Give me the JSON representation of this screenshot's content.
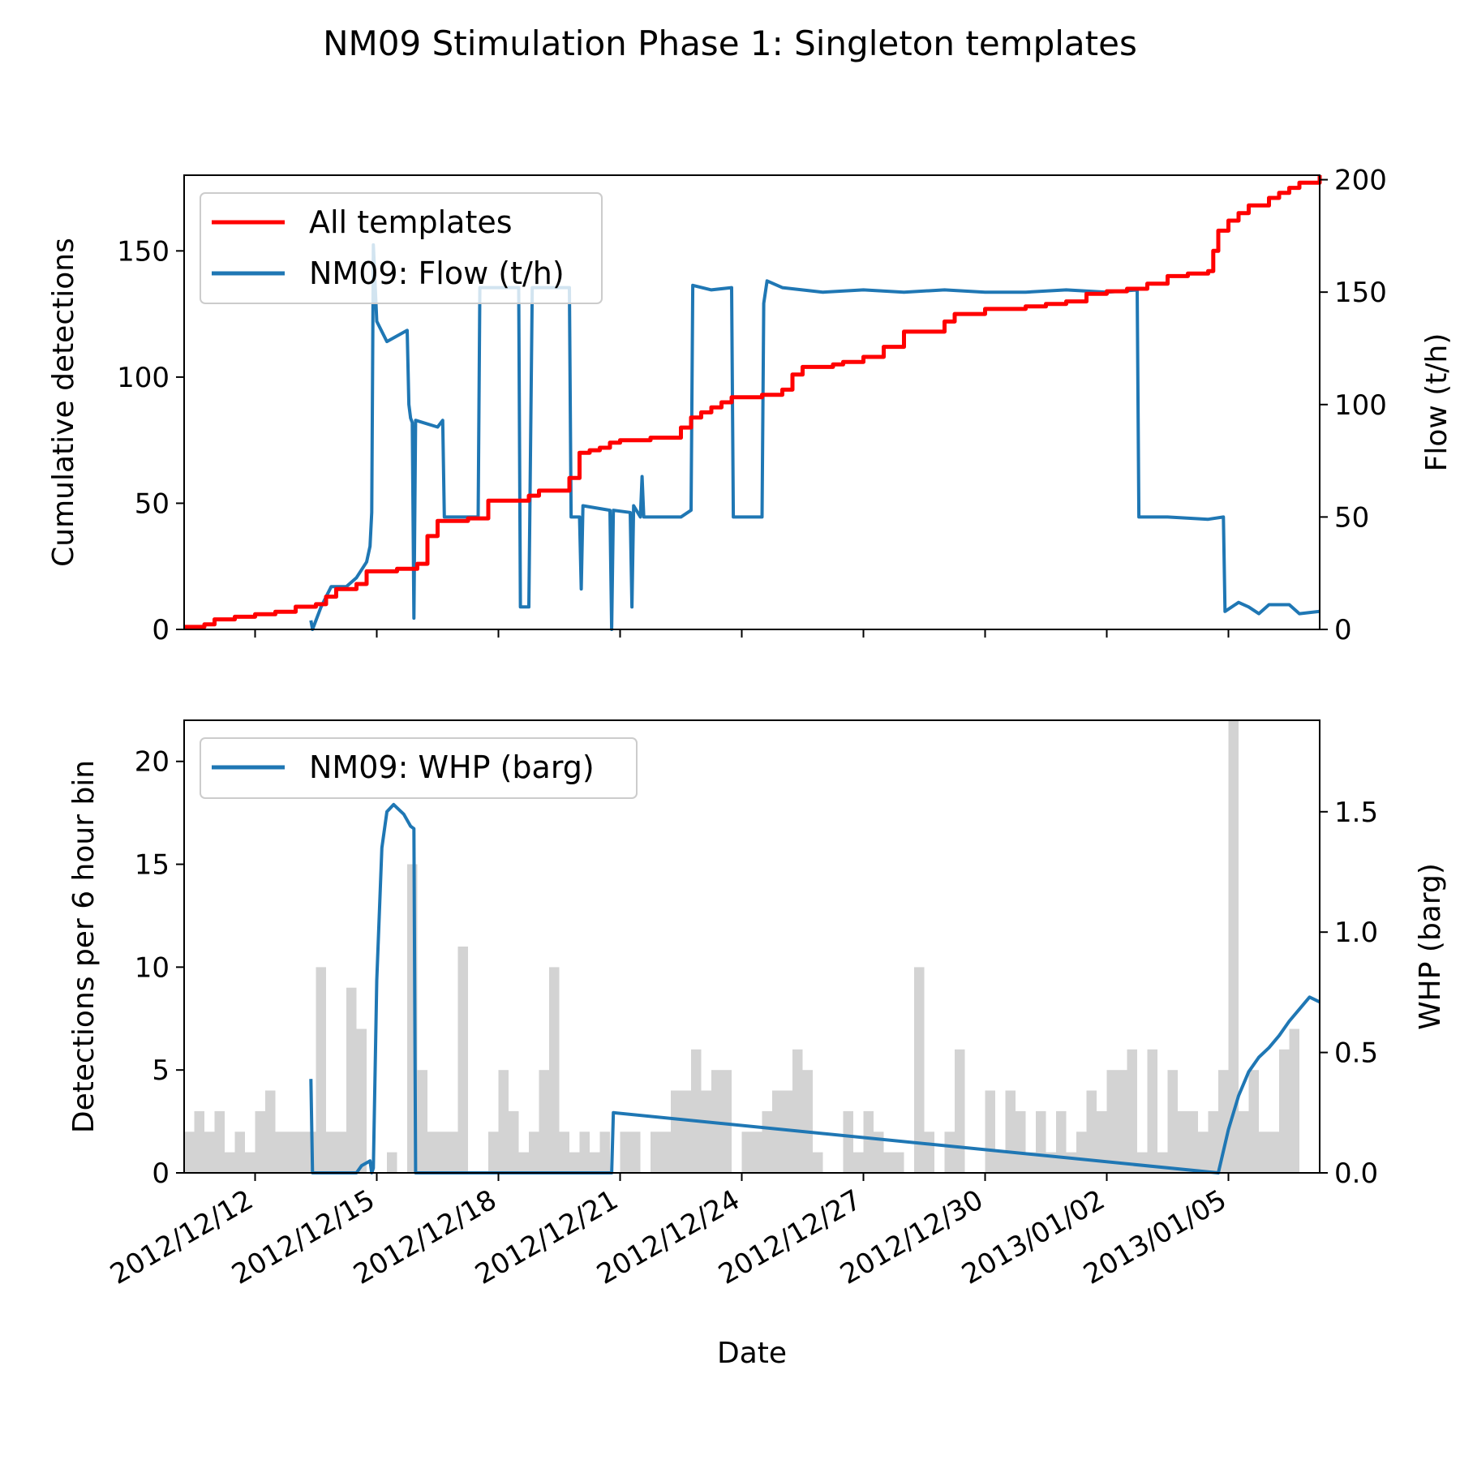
{
  "figure": {
    "title": "NM09 Stimulation Phase 1: Singleton templates",
    "xlabel": "Date"
  },
  "chart_data": [
    {
      "type": "line",
      "panel": "top",
      "xlabel": "",
      "ylabel": "Cumulative detections",
      "y2label": "Flow (t/h)",
      "xlim": [
        "2012-12-10T06:00",
        "2013-01-07T06:00"
      ],
      "ylim": [
        0,
        180
      ],
      "y2lim": [
        0,
        202
      ],
      "x_ticks": [
        "2012-12-12",
        "2012-12-15",
        "2012-12-18",
        "2012-12-21",
        "2012-12-24",
        "2012-12-27",
        "2012-12-30",
        "2013-01-02",
        "2013-01-05"
      ],
      "y_ticks": [
        0,
        50,
        100,
        150
      ],
      "y2_ticks": [
        0,
        50,
        100,
        150,
        200
      ],
      "legend": {
        "placement": "top-left",
        "entries": [
          "All templates",
          "NM09: Flow (t/h)"
        ]
      },
      "grid": false,
      "series": [
        {
          "name": "All templates",
          "axis": "left",
          "color": "#ff0000",
          "step": true,
          "points": [
            [
              "2012-12-10T06:00",
              1
            ],
            [
              "2012-12-10T18:00",
              2
            ],
            [
              "2012-12-11T00:00",
              4
            ],
            [
              "2012-12-11T12:00",
              5
            ],
            [
              "2012-12-12T00:00",
              6
            ],
            [
              "2012-12-12T12:00",
              7
            ],
            [
              "2012-12-13T00:00",
              9
            ],
            [
              "2012-12-13T12:00",
              10
            ],
            [
              "2012-12-13T18:00",
              13
            ],
            [
              "2012-12-14T00:00",
              16
            ],
            [
              "2012-12-14T12:00",
              18
            ],
            [
              "2012-12-14T18:00",
              23
            ],
            [
              "2012-12-15T12:00",
              24
            ],
            [
              "2012-12-16T00:00",
              26
            ],
            [
              "2012-12-16T06:00",
              37
            ],
            [
              "2012-12-16T12:00",
              43
            ],
            [
              "2012-12-17T06:00",
              44
            ],
            [
              "2012-12-17T18:00",
              51
            ],
            [
              "2012-12-18T18:00",
              53
            ],
            [
              "2012-12-19T00:00",
              55
            ],
            [
              "2012-12-19T18:00",
              60
            ],
            [
              "2012-12-20T00:00",
              70
            ],
            [
              "2012-12-20T06:00",
              71
            ],
            [
              "2012-12-20T12:00",
              72
            ],
            [
              "2012-12-20T18:00",
              74
            ],
            [
              "2012-12-21T00:00",
              75
            ],
            [
              "2012-12-21T18:00",
              76
            ],
            [
              "2012-12-22T12:00",
              80
            ],
            [
              "2012-12-22T18:00",
              84
            ],
            [
              "2012-12-23T00:00",
              86
            ],
            [
              "2012-12-23T06:00",
              88
            ],
            [
              "2012-12-23T12:00",
              90
            ],
            [
              "2012-12-23T18:00",
              92
            ],
            [
              "2012-12-24T12:00",
              93
            ],
            [
              "2012-12-25T00:00",
              95
            ],
            [
              "2012-12-25T06:00",
              101
            ],
            [
              "2012-12-25T12:00",
              104
            ],
            [
              "2012-12-26T06:00",
              105
            ],
            [
              "2012-12-26T12:00",
              106
            ],
            [
              "2012-12-27T00:00",
              108
            ],
            [
              "2012-12-27T12:00",
              112
            ],
            [
              "2012-12-28T00:00",
              118
            ],
            [
              "2012-12-29T00:00",
              122
            ],
            [
              "2012-12-29T06:00",
              125
            ],
            [
              "2012-12-30T00:00",
              127
            ],
            [
              "2012-12-31T00:00",
              128
            ],
            [
              "2012-12-31T12:00",
              129
            ],
            [
              "2013-01-01T00:00",
              130
            ],
            [
              "2013-01-01T12:00",
              133
            ],
            [
              "2013-01-02T00:00",
              134
            ],
            [
              "2013-01-02T12:00",
              135
            ],
            [
              "2013-01-03T00:00",
              137
            ],
            [
              "2013-01-03T12:00",
              140
            ],
            [
              "2013-01-04T00:00",
              141
            ],
            [
              "2013-01-04T12:00",
              142
            ],
            [
              "2013-01-04T15:00",
              150
            ],
            [
              "2013-01-04T18:00",
              158
            ],
            [
              "2013-01-05T00:00",
              162
            ],
            [
              "2013-01-05T06:00",
              165
            ],
            [
              "2013-01-05T12:00",
              168
            ],
            [
              "2013-01-06T00:00",
              171
            ],
            [
              "2013-01-06T06:00",
              173
            ],
            [
              "2013-01-06T12:00",
              175
            ],
            [
              "2013-01-06T18:00",
              177
            ],
            [
              "2013-01-07T06:00",
              180
            ]
          ]
        },
        {
          "name": "NM09: Flow (t/h)",
          "axis": "right",
          "color": "#1f77b4",
          "step": false,
          "points": [
            [
              "2012-12-13T09:00",
              4
            ],
            [
              "2012-12-13T10:00",
              0
            ],
            [
              "2012-12-13T15:00",
              10
            ],
            [
              "2012-12-13T21:00",
              19
            ],
            [
              "2012-12-14T06:00",
              19
            ],
            [
              "2012-12-14T12:00",
              23
            ],
            [
              "2012-12-14T18:00",
              30
            ],
            [
              "2012-12-14T20:00",
              37
            ],
            [
              "2012-12-14T21:00",
              52
            ],
            [
              "2012-12-14T22:00",
              171
            ],
            [
              "2012-12-15T00:00",
              137
            ],
            [
              "2012-12-15T06:00",
              128
            ],
            [
              "2012-12-15T18:00",
              133
            ],
            [
              "2012-12-15T19:00",
              100
            ],
            [
              "2012-12-15T20:00",
              94
            ],
            [
              "2012-12-15T21:00",
              92
            ],
            [
              "2012-12-15T22:00",
              5
            ],
            [
              "2012-12-15T23:00",
              93
            ],
            [
              "2012-12-16T12:00",
              90
            ],
            [
              "2012-12-16T15:00",
              93
            ],
            [
              "2012-12-16T16:00",
              50
            ],
            [
              "2012-12-17T12:00",
              50
            ],
            [
              "2012-12-17T13:00",
              152
            ],
            [
              "2012-12-18T12:00",
              152
            ],
            [
              "2012-12-18T13:00",
              10
            ],
            [
              "2012-12-18T18:00",
              10
            ],
            [
              "2012-12-18T20:00",
              152
            ],
            [
              "2012-12-19T18:00",
              152
            ],
            [
              "2012-12-19T19:00",
              50
            ],
            [
              "2012-12-20T00:00",
              50
            ],
            [
              "2012-12-20T01:00",
              18
            ],
            [
              "2012-12-20T02:00",
              55
            ],
            [
              "2012-12-20T18:00",
              53
            ],
            [
              "2012-12-20T19:00",
              0
            ],
            [
              "2012-12-20T20:00",
              53
            ],
            [
              "2012-12-21T06:00",
              52
            ],
            [
              "2012-12-21T07:00",
              10
            ],
            [
              "2012-12-21T08:00",
              55
            ],
            [
              "2012-12-21T12:00",
              50
            ],
            [
              "2012-12-21T13:00",
              68
            ],
            [
              "2012-12-21T14:00",
              50
            ],
            [
              "2012-12-22T12:00",
              50
            ],
            [
              "2012-12-22T18:00",
              53
            ],
            [
              "2012-12-22T19:00",
              153
            ],
            [
              "2012-12-23T06:00",
              151
            ],
            [
              "2012-12-23T18:00",
              152
            ],
            [
              "2012-12-23T19:00",
              50
            ],
            [
              "2012-12-24T12:00",
              50
            ],
            [
              "2012-12-24T13:00",
              145
            ],
            [
              "2012-12-24T15:00",
              155
            ],
            [
              "2012-12-25T00:00",
              152
            ],
            [
              "2012-12-26T00:00",
              150
            ],
            [
              "2012-12-27T00:00",
              151
            ],
            [
              "2012-12-28T00:00",
              150
            ],
            [
              "2012-12-29T00:00",
              151
            ],
            [
              "2012-12-30T00:00",
              150
            ],
            [
              "2012-12-31T00:00",
              150
            ],
            [
              "2013-01-01T00:00",
              151
            ],
            [
              "2013-01-02T00:00",
              150
            ],
            [
              "2013-01-02T18:00",
              151
            ],
            [
              "2013-01-02T19:00",
              50
            ],
            [
              "2013-01-03T12:00",
              50
            ],
            [
              "2013-01-04T12:00",
              49
            ],
            [
              "2013-01-04T21:00",
              50
            ],
            [
              "2013-01-04T22:00",
              8
            ],
            [
              "2013-01-05T06:00",
              12
            ],
            [
              "2013-01-05T12:00",
              10
            ],
            [
              "2013-01-05T18:00",
              7
            ],
            [
              "2013-01-06T00:00",
              11
            ],
            [
              "2013-01-06T12:00",
              11
            ],
            [
              "2013-01-06T18:00",
              7
            ],
            [
              "2013-01-07T06:00",
              8
            ]
          ]
        }
      ]
    },
    {
      "type": "bar",
      "panel": "bottom",
      "xlabel": "Date",
      "ylabel": "Detections per 6 hour bin",
      "y2label": "WHP (barg)",
      "xlim": [
        "2012-12-10T06:00",
        "2013-01-07T06:00"
      ],
      "ylim": [
        0,
        22
      ],
      "y2lim": [
        0,
        1.88
      ],
      "y_ticks": [
        0,
        5,
        10,
        15,
        20
      ],
      "y2_ticks": [
        0.0,
        0.5,
        1.0,
        1.5
      ],
      "y2_tick_labels": [
        "0.0",
        "0.5",
        "1.0",
        "1.5"
      ],
      "x_ticks": [
        "2012-12-12",
        "2012-12-15",
        "2012-12-18",
        "2012-12-21",
        "2012-12-24",
        "2012-12-27",
        "2012-12-30",
        "2013-01-02",
        "2013-01-05"
      ],
      "x_tick_labels": [
        "2012/12/12",
        "2012/12/15",
        "2012/12/18",
        "2012/12/21",
        "2012/12/24",
        "2012/12/27",
        "2012/12/30",
        "2013/01/02",
        "2013/01/05"
      ],
      "bar_start": "2012-12-10T06:00",
      "bar_width_hours": 6,
      "bar_color": "#d3d3d3",
      "bar_values": [
        2,
        3,
        2,
        3,
        1,
        2,
        1,
        3,
        4,
        2,
        2,
        2,
        2,
        10,
        2,
        2,
        9,
        7,
        0,
        0,
        1,
        0,
        15,
        5,
        2,
        2,
        2,
        11,
        0,
        0,
        2,
        5,
        3,
        1,
        2,
        5,
        10,
        2,
        1,
        2,
        1,
        2,
        0,
        2,
        2,
        0,
        2,
        2,
        4,
        4,
        6,
        4,
        5,
        5,
        0,
        2,
        2,
        3,
        4,
        4,
        6,
        5,
        1,
        0,
        0,
        3,
        1,
        3,
        2,
        1,
        1,
        0,
        10,
        2,
        0,
        2,
        6,
        0,
        0,
        4,
        1,
        4,
        3,
        1,
        3,
        1,
        3,
        1,
        2,
        4,
        3,
        5,
        5,
        6,
        1,
        6,
        1,
        5,
        3,
        3,
        2,
        3,
        5,
        22,
        3,
        5,
        2,
        2,
        6,
        7
      ],
      "legend": {
        "placement": "top-left",
        "entries": [
          "NM09: WHP (barg)"
        ]
      },
      "grid": false,
      "series": [
        {
          "name": "NM09: WHP (barg)",
          "axis": "right",
          "color": "#1f77b4",
          "points": [
            [
              "2012-12-13T09:00",
              0.39
            ],
            [
              "2012-12-13T10:00",
              0.0
            ],
            [
              "2012-12-14T12:00",
              0.0
            ],
            [
              "2012-12-14T15:00",
              0.03
            ],
            [
              "2012-12-14T20:00",
              0.05
            ],
            [
              "2012-12-14T21:00",
              0.0
            ],
            [
              "2012-12-14T22:00",
              0.02
            ],
            [
              "2012-12-15T00:00",
              0.8
            ],
            [
              "2012-12-15T03:00",
              1.35
            ],
            [
              "2012-12-15T06:00",
              1.5
            ],
            [
              "2012-12-15T10:00",
              1.53
            ],
            [
              "2012-12-15T16:00",
              1.49
            ],
            [
              "2012-12-15T20:00",
              1.44
            ],
            [
              "2012-12-15T22:00",
              1.43
            ],
            [
              "2012-12-15T23:00",
              0.0
            ],
            [
              "2012-12-20T19:00",
              0.0
            ],
            [
              "2012-12-20T20:00",
              0.25
            ],
            [
              "2013-01-04T18:00",
              0.0
            ],
            [
              "2013-01-05T00:00",
              0.18
            ],
            [
              "2013-01-05T06:00",
              0.32
            ],
            [
              "2013-01-05T12:00",
              0.42
            ],
            [
              "2013-01-05T18:00",
              0.48
            ],
            [
              "2013-01-06T00:00",
              0.52
            ],
            [
              "2013-01-06T06:00",
              0.57
            ],
            [
              "2013-01-06T12:00",
              0.63
            ],
            [
              "2013-01-06T18:00",
              0.68
            ],
            [
              "2013-01-07T00:00",
              0.73
            ],
            [
              "2013-01-07T06:00",
              0.71
            ]
          ]
        }
      ]
    }
  ]
}
